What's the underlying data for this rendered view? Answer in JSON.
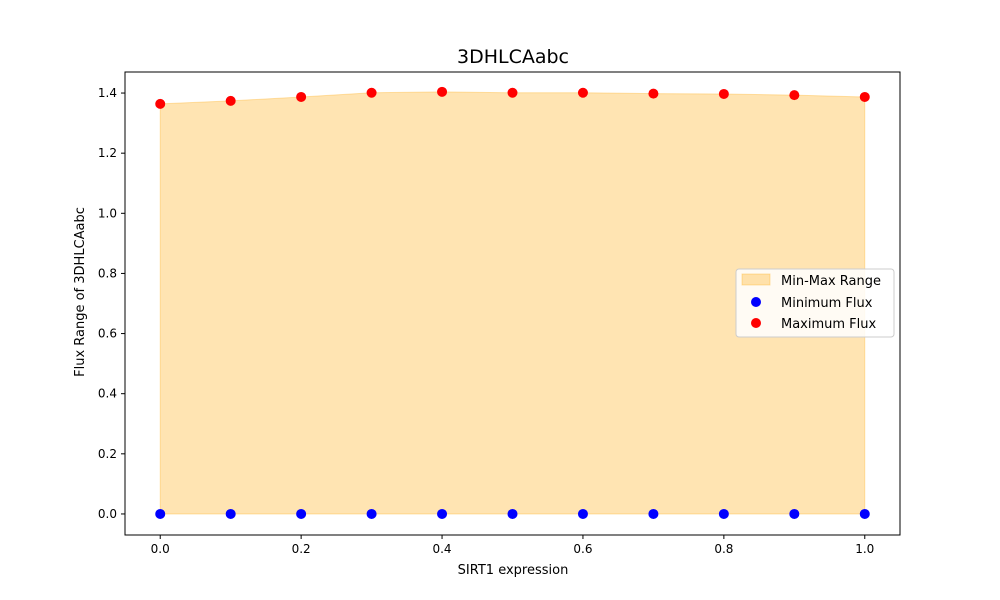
{
  "chart_data": {
    "type": "scatter",
    "title": "3DHLCAabc",
    "xlabel": "SIRT1 expression",
    "ylabel": "Flux Range of 3DHLCAabc",
    "x": [
      0.0,
      0.1,
      0.2,
      0.3,
      0.4,
      0.5,
      0.6,
      0.7,
      0.8,
      0.9,
      1.0
    ],
    "series": [
      {
        "name": "Minimum Flux",
        "color": "#0000ff",
        "values": [
          0,
          0,
          0,
          0,
          0,
          0,
          0,
          0,
          0,
          0,
          0
        ]
      },
      {
        "name": "Maximum Flux",
        "color": "#ff0000",
        "values": [
          1.364,
          1.374,
          1.387,
          1.401,
          1.404,
          1.401,
          1.401,
          1.398,
          1.397,
          1.393,
          1.387
        ]
      }
    ],
    "fill": {
      "name": "Min-Max Range",
      "color": "#ffa500",
      "opacity": 0.3
    },
    "xlim": [
      -0.05,
      1.05
    ],
    "ylim": [
      -0.07,
      1.47
    ],
    "xticks": [
      0.0,
      0.2,
      0.4,
      0.6,
      0.8,
      1.0
    ],
    "xtick_labels": [
      "0.0",
      "0.2",
      "0.4",
      "0.6",
      "0.8",
      "1.0"
    ],
    "yticks": [
      0.0,
      0.2,
      0.4,
      0.6,
      0.8,
      1.0,
      1.2,
      1.4
    ],
    "ytick_labels": [
      "0.0",
      "0.2",
      "0.4",
      "0.6",
      "0.8",
      "1.0",
      "1.2",
      "1.4"
    ],
    "grid": false,
    "legend": {
      "placement": "center-right",
      "entries": [
        "Min-Max Range",
        "Minimum Flux",
        "Maximum Flux"
      ]
    }
  }
}
